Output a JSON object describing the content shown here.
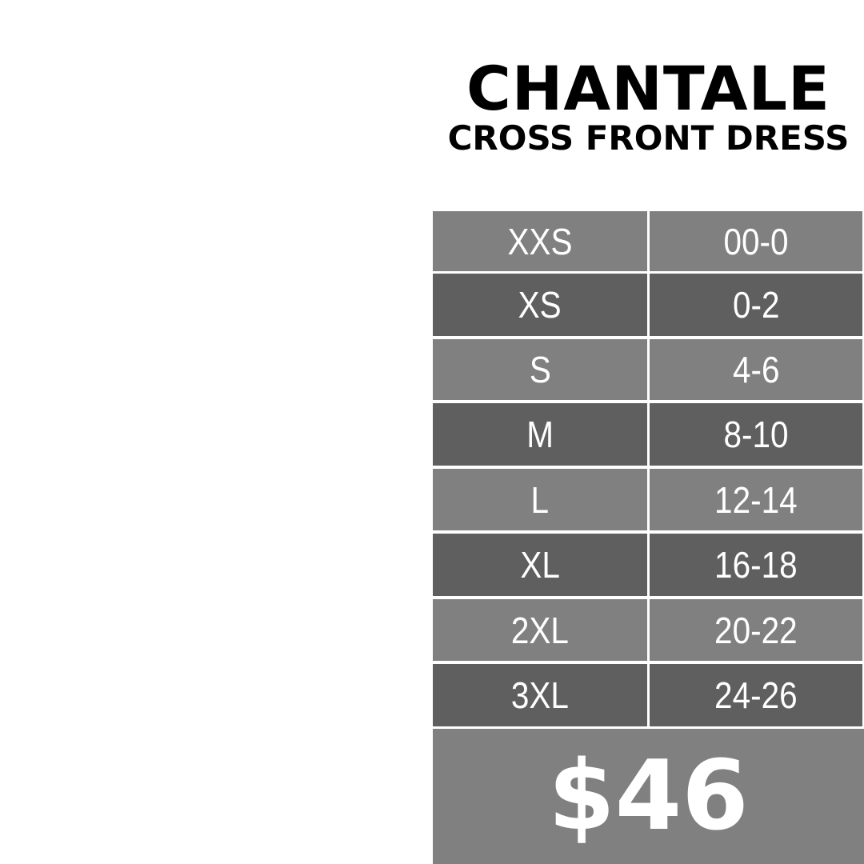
{
  "header": {
    "title": "CHANTALE",
    "subtitle": "CROSS FRONT DRESS"
  },
  "size_chart": {
    "rows": [
      {
        "size": "XXS",
        "numeric": "00-0"
      },
      {
        "size": "XS",
        "numeric": "0-2"
      },
      {
        "size": "S",
        "numeric": "4-6"
      },
      {
        "size": "M",
        "numeric": "8-10"
      },
      {
        "size": "L",
        "numeric": "12-14"
      },
      {
        "size": "XL",
        "numeric": "16-18"
      },
      {
        "size": "2XL",
        "numeric": "20-22"
      },
      {
        "size": "3XL",
        "numeric": "24-26"
      }
    ]
  },
  "price": "$46",
  "colors": {
    "row_light": "#808080",
    "row_dark": "#5f5f5f",
    "text": "#ffffff"
  }
}
